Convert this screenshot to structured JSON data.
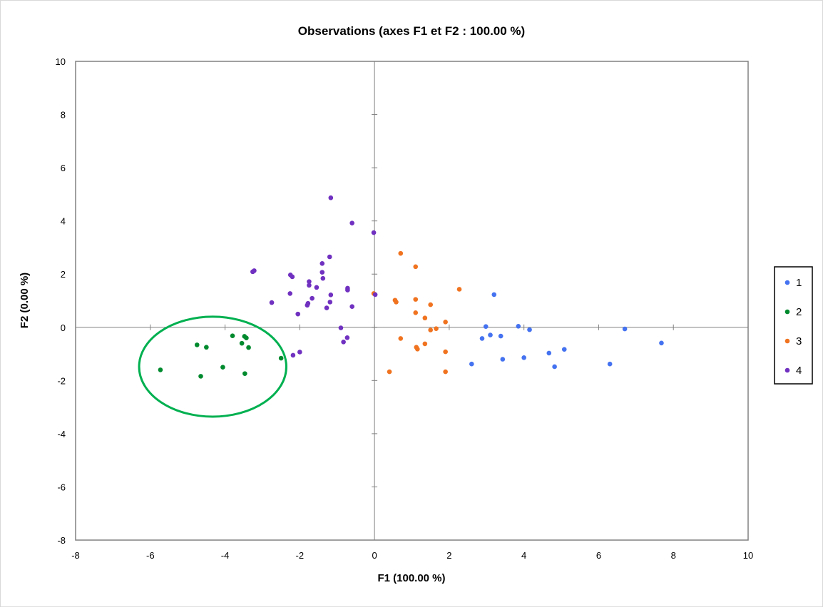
{
  "chart_data": {
    "type": "scatter",
    "title": "Observations (axes F1 et F2 : 100.00 %)",
    "xlabel": "F1 (100.00 %)",
    "ylabel": "F2 (0.00 %)",
    "xlim": [
      -8,
      10
    ],
    "ylim": [
      -8,
      10
    ],
    "xticks": [
      "-8",
      "-6",
      "-4",
      "-2",
      "0",
      "2",
      "4",
      "6",
      "8",
      "10"
    ],
    "yticks": [
      "-8",
      "-6",
      "-4",
      "-2",
      "0",
      "2",
      "4",
      "6",
      "8",
      "10"
    ],
    "grid": false,
    "legend_position": "right",
    "series": [
      {
        "name": "1",
        "color": "#4472f0",
        "points": [
          [
            3.2,
            1.23
          ],
          [
            2.98,
            0.03
          ],
          [
            3.1,
            -0.29
          ],
          [
            3.38,
            -0.33
          ],
          [
            2.88,
            -0.42
          ],
          [
            3.85,
            0.04
          ],
          [
            4.15,
            -0.09
          ],
          [
            2.6,
            -1.38
          ],
          [
            3.43,
            -1.2
          ],
          [
            4.0,
            -1.14
          ],
          [
            4.67,
            -0.97
          ],
          [
            4.82,
            -1.48
          ],
          [
            5.08,
            -0.83
          ],
          [
            6.3,
            -1.38
          ],
          [
            6.7,
            -0.06
          ],
          [
            7.68,
            -0.59
          ]
        ]
      },
      {
        "name": "2",
        "color": "#008a2e",
        "points": [
          [
            -5.73,
            -1.6
          ],
          [
            -4.75,
            -0.66
          ],
          [
            -4.65,
            -1.84
          ],
          [
            -4.5,
            -0.75
          ],
          [
            -4.06,
            -1.5
          ],
          [
            -3.8,
            -0.32
          ],
          [
            -3.55,
            -0.6
          ],
          [
            -3.47,
            -1.74
          ],
          [
            -3.48,
            -0.34
          ],
          [
            -3.43,
            -0.4
          ],
          [
            -3.37,
            -0.76
          ],
          [
            -2.5,
            -1.16
          ]
        ]
      },
      {
        "name": "3",
        "color": "#f07320",
        "points": [
          [
            0.7,
            2.78
          ],
          [
            1.1,
            2.28
          ],
          [
            2.27,
            1.43
          ],
          [
            -0.02,
            1.27
          ],
          [
            0.55,
            1.02
          ],
          [
            0.58,
            0.95
          ],
          [
            1.1,
            1.05
          ],
          [
            1.5,
            0.85
          ],
          [
            1.1,
            0.55
          ],
          [
            1.35,
            0.35
          ],
          [
            1.9,
            0.2
          ],
          [
            1.65,
            -0.05
          ],
          [
            1.5,
            -0.1
          ],
          [
            0.7,
            -0.42
          ],
          [
            1.35,
            -0.62
          ],
          [
            1.12,
            -0.75
          ],
          [
            1.15,
            -0.82
          ],
          [
            1.9,
            -0.92
          ],
          [
            0.4,
            -1.67
          ],
          [
            1.9,
            -1.67
          ]
        ]
      },
      {
        "name": "4",
        "color": "#7030c0",
        "points": [
          [
            -1.17,
            4.87
          ],
          [
            -0.6,
            3.92
          ],
          [
            -0.02,
            3.56
          ],
          [
            -1.2,
            2.65
          ],
          [
            -1.4,
            2.4
          ],
          [
            -3.22,
            2.13
          ],
          [
            -3.26,
            2.09
          ],
          [
            -1.4,
            2.07
          ],
          [
            -2.25,
            1.97
          ],
          [
            -2.2,
            1.9
          ],
          [
            -1.38,
            1.84
          ],
          [
            -1.75,
            1.72
          ],
          [
            -1.75,
            1.58
          ],
          [
            -1.55,
            1.5
          ],
          [
            -0.72,
            1.47
          ],
          [
            -0.72,
            1.4
          ],
          [
            -2.26,
            1.27
          ],
          [
            -1.17,
            1.22
          ],
          [
            0.02,
            1.23
          ],
          [
            -1.67,
            1.09
          ],
          [
            -1.19,
            0.95
          ],
          [
            -2.75,
            0.93
          ],
          [
            -1.78,
            0.9
          ],
          [
            -1.8,
            0.83
          ],
          [
            -0.6,
            0.78
          ],
          [
            -1.28,
            0.73
          ],
          [
            -2.05,
            0.5
          ],
          [
            -0.9,
            -0.02
          ],
          [
            -0.73,
            -0.39
          ],
          [
            -0.83,
            -0.55
          ],
          [
            -2.0,
            -0.93
          ],
          [
            -2.18,
            -1.05
          ]
        ]
      }
    ],
    "annotations": [
      {
        "type": "ellipse",
        "color": "#00b050",
        "center": [
          -4.33,
          -1.48
        ],
        "rx": 1.97,
        "ry": 1.88
      }
    ]
  }
}
